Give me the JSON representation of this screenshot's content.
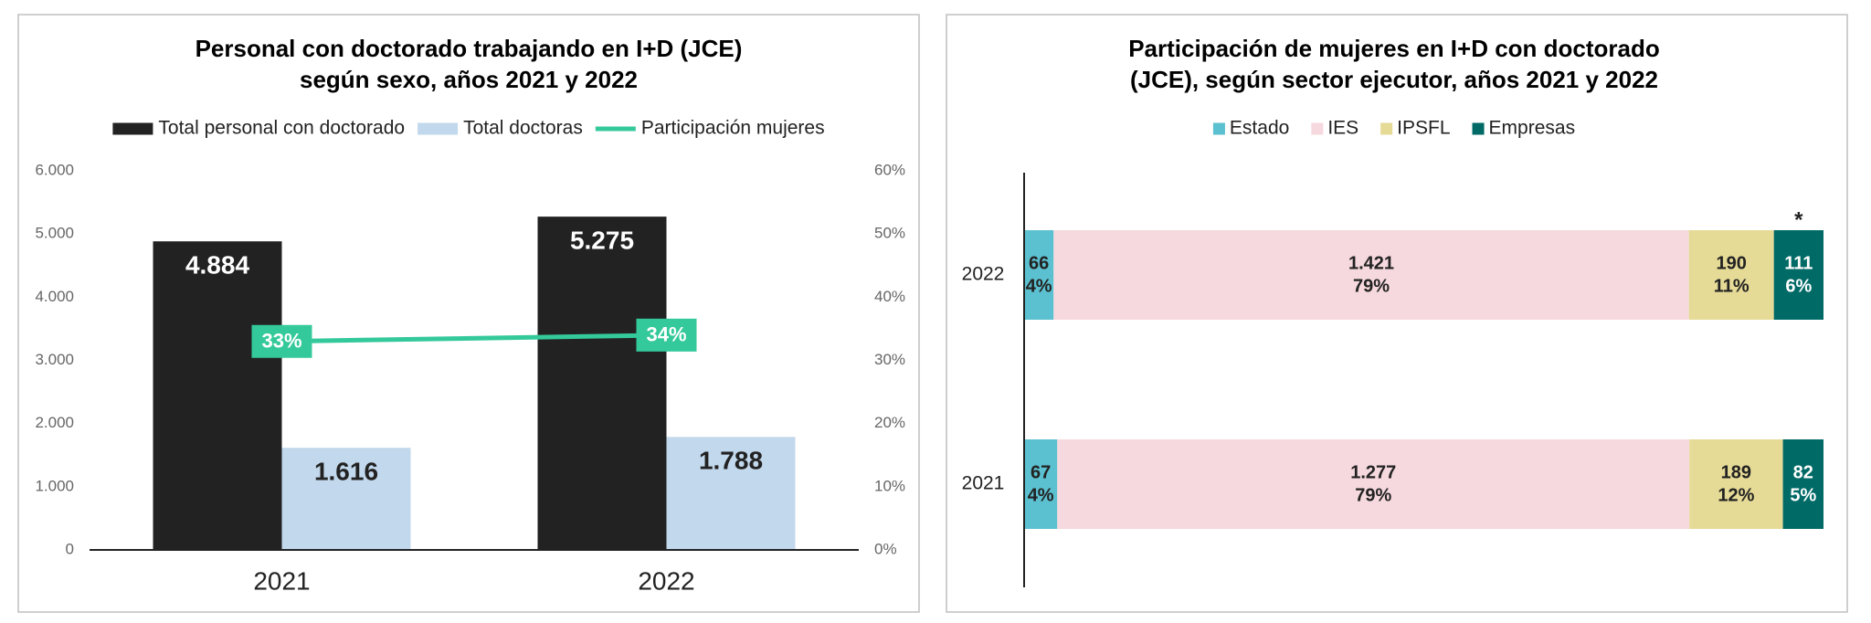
{
  "chart_data": [
    {
      "type": "combo",
      "title": [
        "Personal con doctorado trabajando en I+D (JCE)",
        "según sexo, años 2021 y 2022"
      ],
      "categories": [
        "2021",
        "2022"
      ],
      "series": [
        {
          "name": "Total personal con doctorado",
          "type": "bar",
          "color": "#222222",
          "label_color": "#ffffff",
          "values": [
            4884,
            5275
          ],
          "value_labels": [
            "4.884",
            "5.275"
          ]
        },
        {
          "name": "Total doctoras",
          "type": "bar",
          "color": "#c2d8ec",
          "label_color": "#222222",
          "values": [
            1616,
            1788
          ],
          "value_labels": [
            "1.616",
            "1.788"
          ]
        },
        {
          "name": "Participación mujeres",
          "type": "line",
          "axis": "y2",
          "color": "#34c99a",
          "label_color": "#ffffff",
          "values": [
            33,
            34
          ],
          "value_labels": [
            "33%",
            "34%"
          ]
        }
      ],
      "ylim": [
        0,
        6000
      ],
      "yticks": [
        0,
        {
          "value": 1000,
          "label": "1.000"
        },
        {
          "value": 2000,
          "label": "2.000"
        },
        {
          "value": 3000,
          "label": "3.000"
        },
        {
          "value": 4000,
          "label": "4.000"
        },
        {
          "value": 5000,
          "label": "5.000"
        },
        {
          "value": 6000,
          "label": "6.000"
        }
      ],
      "y2lim": [
        0,
        60
      ],
      "y2ticks": [
        {
          "value": 0,
          "label": "0%"
        },
        {
          "value": 10,
          "label": "10%"
        },
        {
          "value": 20,
          "label": "20%"
        },
        {
          "value": 30,
          "label": "30%"
        },
        {
          "value": 40,
          "label": "40%"
        },
        {
          "value": 50,
          "label": "50%"
        },
        {
          "value": 60,
          "label": "60%"
        }
      ]
    },
    {
      "type": "hbar100",
      "title": [
        "Participación de mujeres en I+D con doctorado",
        "(JCE), según sector ejecutor, años 2021 y 2022"
      ],
      "categories": [
        "2022",
        "2021"
      ],
      "series": [
        {
          "name": "Estado",
          "color": "#5bc0cf",
          "label_color": "#222222",
          "values": [
            66,
            67
          ],
          "value_labels": [
            "66",
            "67"
          ],
          "shares": [
            4,
            4
          ],
          "share_labels": [
            "4%",
            "4%"
          ]
        },
        {
          "name": "IES",
          "color": "#f6d9de",
          "label_color": "#222222",
          "values": [
            1421,
            1277
          ],
          "value_labels": [
            "1.421",
            "1.277"
          ],
          "shares": [
            79,
            79
          ],
          "share_labels": [
            "79%",
            "79%"
          ]
        },
        {
          "name": "IPSFL",
          "color": "#e5da96",
          "label_color": "#222222",
          "values": [
            190,
            189
          ],
          "value_labels": [
            "190",
            "189"
          ],
          "shares": [
            11,
            12
          ],
          "share_labels": [
            "11%",
            "12%"
          ]
        },
        {
          "name": "Empresas",
          "color": "#006a66",
          "label_color": "#ffffff",
          "values": [
            111,
            82
          ],
          "value_labels": [
            "111",
            "82"
          ],
          "shares": [
            6,
            5
          ],
          "share_labels": [
            "6%",
            "5%"
          ]
        }
      ],
      "annotations": [
        {
          "text": "*",
          "series": 3,
          "index": 0
        }
      ]
    }
  ]
}
